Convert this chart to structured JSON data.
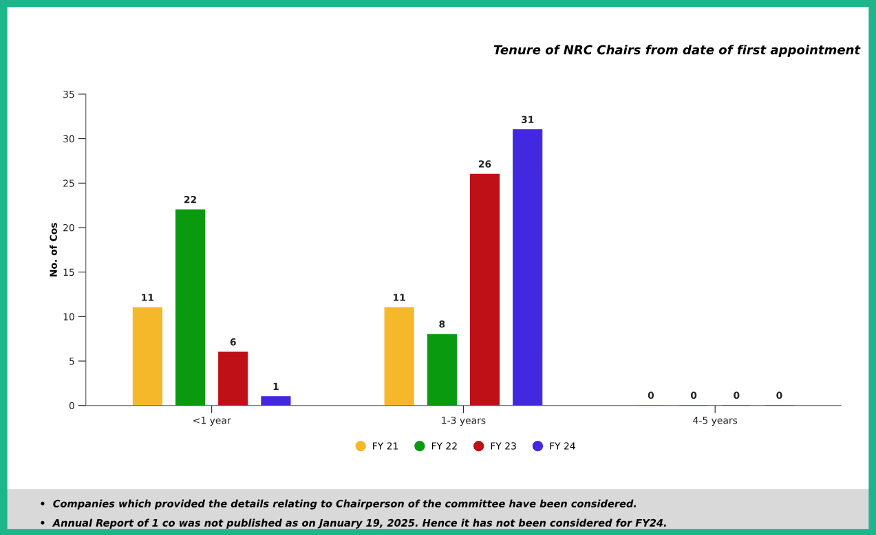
{
  "chart_data": {
    "type": "bar",
    "title": "Tenure of NRC Chairs from date of first appointment",
    "ylabel": "No. of Cos",
    "categories": [
      "<1 year",
      "1-3 years",
      "4-5 years"
    ],
    "series": [
      {
        "name": "FY 21",
        "color": "#f5b82a",
        "values": [
          11,
          11,
          0
        ]
      },
      {
        "name": "FY 22",
        "color": "#0a9a10",
        "values": [
          22,
          8,
          0
        ]
      },
      {
        "name": "FY 23",
        "color": "#bf1018",
        "values": [
          6,
          26,
          0
        ]
      },
      {
        "name": "FY 24",
        "color": "#4229e0",
        "values": [
          1,
          31,
          0
        ]
      }
    ],
    "ylim": [
      0,
      35
    ],
    "yticks": [
      0,
      5,
      10,
      15,
      20,
      25,
      30,
      35
    ],
    "grid": false,
    "legend": "bottom",
    "data_labels": true,
    "annotations": [
      "•  Companies which provided the details relating to Chairperson of the committee have been considered.",
      "•  Annual Report of 1 co was not published as on January 19, 2025. Hence it has not been considered for FY24."
    ]
  }
}
